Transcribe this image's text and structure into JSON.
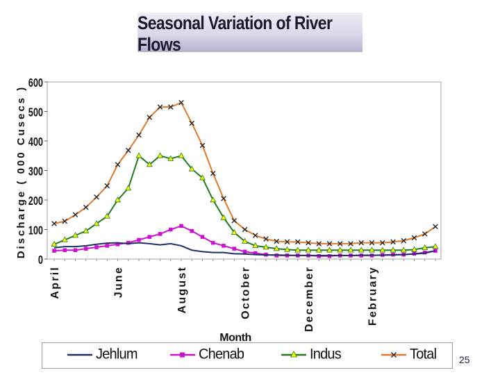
{
  "slide": {
    "title": "Seasonal Variation of River Flows",
    "page_number": "25"
  },
  "legend": {
    "items": [
      {
        "label": "Jehlum",
        "color": "#1f2f66",
        "marker": "none"
      },
      {
        "label": "Chenab",
        "color": "#cc11cc",
        "marker": "square"
      },
      {
        "label": "Indus",
        "color": "#1e7a1e",
        "marker": "triangle"
      },
      {
        "label": "Total",
        "color": "#e0782a",
        "marker": "x"
      }
    ]
  },
  "chart_data": {
    "type": "line",
    "title": "Seasonal Variation of River Flows",
    "xlabel": "Month",
    "ylabel": "Discharge ( 000 Cusecs )",
    "ylim": [
      0,
      600
    ],
    "yticks": [
      0,
      100,
      200,
      300,
      400,
      500,
      600
    ],
    "x_tick_labels": [
      {
        "label": "April",
        "index": 0
      },
      {
        "label": "June",
        "index": 6
      },
      {
        "label": "August",
        "index": 12
      },
      {
        "label": "October",
        "index": 18
      },
      {
        "label": "December",
        "index": 24
      },
      {
        "label": "February",
        "index": 30
      }
    ],
    "n_points": 37,
    "grid": false,
    "legend_position": "bottom",
    "series": [
      {
        "name": "Jehlum",
        "color": "#1f2f66",
        "marker": "none",
        "values": [
          38,
          42,
          42,
          45,
          50,
          54,
          55,
          52,
          55,
          52,
          48,
          52,
          45,
          30,
          25,
          22,
          22,
          18,
          17,
          15,
          14,
          14,
          13,
          12,
          12,
          12,
          12,
          12,
          12,
          13,
          13,
          13,
          14,
          15,
          17,
          20,
          28
        ]
      },
      {
        "name": "Chenab",
        "color": "#cc11cc",
        "marker": "square",
        "values": [
          28,
          30,
          30,
          35,
          40,
          45,
          50,
          55,
          65,
          75,
          85,
          100,
          112,
          95,
          75,
          55,
          45,
          35,
          25,
          20,
          15,
          12,
          12,
          12,
          12,
          10,
          10,
          12,
          12,
          12,
          12,
          14,
          15,
          15,
          18,
          22,
          28
        ]
      },
      {
        "name": "Indus",
        "color": "#1e7a1e",
        "marker": "triangle",
        "values": [
          50,
          65,
          80,
          95,
          120,
          145,
          200,
          240,
          350,
          320,
          350,
          340,
          350,
          305,
          275,
          200,
          140,
          90,
          60,
          45,
          40,
          35,
          32,
          30,
          30,
          30,
          30,
          30,
          30,
          30,
          30,
          30,
          30,
          30,
          32,
          38,
          42
        ]
      },
      {
        "name": "Total",
        "color": "#e0782a",
        "marker": "x",
        "values": [
          120,
          128,
          150,
          175,
          210,
          248,
          320,
          368,
          420,
          480,
          515,
          515,
          530,
          460,
          385,
          290,
          205,
          130,
          100,
          80,
          68,
          60,
          58,
          58,
          55,
          52,
          52,
          52,
          52,
          55,
          55,
          55,
          58,
          62,
          72,
          85,
          110
        ]
      }
    ]
  }
}
